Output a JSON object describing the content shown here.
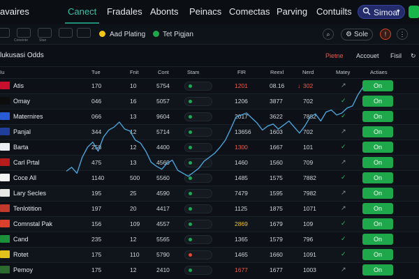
{
  "app": {
    "title": "avaires"
  },
  "nav": {
    "items": [
      "Canect",
      "Fradales",
      "Abonts",
      "Peinacs",
      "Comectas",
      "Parving",
      "Contuilts"
    ],
    "active_index": 0,
    "search_label": "Simoal"
  },
  "toolbar": {
    "icons": [
      "grid-icon",
      "contest-icon",
      "stats-icon"
    ],
    "icon_captions": [
      "",
      "Coneinte",
      "Stan"
    ],
    "add_label": "Aad Plating",
    "pigjan_label": "Tet Pigjan",
    "sole_label": "Sole"
  },
  "section": {
    "title": "lukusasi Odds",
    "tabs": [
      "Pietne",
      "Accouet",
      "Fisil"
    ]
  },
  "columns": [
    "Iu",
    "Tue",
    "Fnit",
    "Cont",
    "Stam",
    "FIR",
    "Reexl",
    "Nerd",
    "Matey",
    "Actiaes"
  ],
  "colors": {
    "accent": "#34c3a8",
    "on_button": "#1ea84b",
    "line": "#4aa3d9",
    "warn": "#f05a4a",
    "highlight": "#f2c419"
  },
  "rows": [
    {
      "name": "Atis",
      "tue": "170",
      "fnit": "10",
      "cont": "5754",
      "fir": "1201",
      "reexl": "08.16",
      "nerd": "302",
      "fir_color": "#f05a4a",
      "nerd_color": "#f05a4a",
      "nerd_prefix": "↓",
      "stam_warn": false,
      "mark": "↗",
      "mark_color": "#8a929b",
      "action": "On",
      "flag": "#c8102e"
    },
    {
      "name": "Omay",
      "tue": "046",
      "fnit": "16",
      "cont": "5057",
      "fir": "1206",
      "reexl": "3877",
      "nerd": "702",
      "fir_color": "#cfd4da",
      "nerd_color": "#cfd4da",
      "nerd_prefix": "",
      "stam_warn": false,
      "mark": "✓",
      "mark_color": "#28c15a",
      "action": "On",
      "flag": "#0d0d0d"
    },
    {
      "name": "Maternires",
      "tue": "066",
      "fnit": "13",
      "cont": "9604",
      "fir": "2017",
      "reexl": "3622",
      "nerd": "7882",
      "fir_color": "#cfd4da",
      "nerd_color": "#cfd4da",
      "nerd_prefix": "",
      "stam_warn": false,
      "mark": "✓",
      "mark_color": "#28c15a",
      "action": "On",
      "flag": "#2a5bd7"
    },
    {
      "name": "Panjal",
      "tue": "344",
      "fnit": "12",
      "cont": "5714",
      "fir": "13656",
      "reexl": "1603",
      "nerd": "702",
      "fir_color": "#cfd4da",
      "nerd_color": "#cfd4da",
      "nerd_prefix": "",
      "stam_warn": false,
      "mark": "↗",
      "mark_color": "#8a929b",
      "action": "On",
      "flag": "#1f3f9b"
    },
    {
      "name": "Barta",
      "tue": "258",
      "fnit": "12",
      "cont": "4400",
      "fir": "1300",
      "reexl": "1667",
      "nerd": "101",
      "fir_color": "#f05a4a",
      "nerd_color": "#cfd4da",
      "nerd_prefix": "",
      "stam_warn": false,
      "mark": "✓",
      "mark_color": "#28c15a",
      "action": "On",
      "flag": "#e9edf2"
    },
    {
      "name": "Carl Prtal",
      "tue": "475",
      "fnit": "13",
      "cont": "4560",
      "fir": "1460",
      "reexl": "1560",
      "nerd": "709",
      "fir_color": "#cfd4da",
      "nerd_color": "#cfd4da",
      "nerd_prefix": "",
      "stam_warn": false,
      "mark": "↗",
      "mark_color": "#8a929b",
      "action": "On",
      "flag": "#b71c1c"
    },
    {
      "name": "Coce All",
      "tue": "1140",
      "fnit": "500",
      "cont": "5560",
      "fir": "1485",
      "reexl": "1575",
      "nerd": "7882",
      "fir_color": "#cfd4da",
      "nerd_color": "#cfd4da",
      "nerd_prefix": "",
      "stam_warn": false,
      "mark": "✓",
      "mark_color": "#28c15a",
      "action": "On",
      "flag": "#f3f3f3"
    },
    {
      "name": "Lary Secles",
      "tue": "195",
      "fnit": "25",
      "cont": "4590",
      "fir": "7479",
      "reexl": "1595",
      "nerd": "7982",
      "fir_color": "#cfd4da",
      "nerd_color": "#cfd4da",
      "nerd_prefix": "",
      "stam_warn": false,
      "mark": "↗",
      "mark_color": "#8a929b",
      "action": "On",
      "flag": "#e6e6e6"
    },
    {
      "name": "Tenlotition",
      "tue": "197",
      "fnit": "20",
      "cont": "4417",
      "fir": "1125",
      "reexl": "1875",
      "nerd": "1071",
      "fir_color": "#cfd4da",
      "nerd_color": "#cfd4da",
      "nerd_prefix": "",
      "stam_warn": false,
      "mark": "↗",
      "mark_color": "#8a929b",
      "action": "On",
      "flag": "#c0392b"
    },
    {
      "name": "Comnstal Pak",
      "tue": "156",
      "fnit": "109",
      "cont": "4557",
      "fir": "2869",
      "reexl": "1679",
      "nerd": "109",
      "fir_color": "#f2c419",
      "nerd_color": "#cfd4da",
      "nerd_prefix": "",
      "stam_warn": false,
      "mark": "✓",
      "mark_color": "#28c15a",
      "action": "On",
      "flag": "#d9412e"
    },
    {
      "name": "Cand",
      "tue": "235",
      "fnit": "12",
      "cont": "5565",
      "fir": "1365",
      "reexl": "1579",
      "nerd": "796",
      "fir_color": "#cfd4da",
      "nerd_color": "#cfd4da",
      "nerd_prefix": "",
      "stam_warn": false,
      "mark": "✓",
      "mark_color": "#28c15a",
      "action": "On",
      "flag": "#1b8f3a"
    },
    {
      "name": "Rotet",
      "tue": "175",
      "fnit": "110",
      "cont": "5790",
      "fir": "1465",
      "reexl": "1660",
      "nerd": "1091",
      "fir_color": "#cfd4da",
      "nerd_color": "#cfd4da",
      "nerd_prefix": "",
      "stam_warn": true,
      "mark": "✓",
      "mark_color": "#28c15a",
      "action": "On",
      "flag": "#e0c21a"
    },
    {
      "name": "Pemoy",
      "tue": "175",
      "fnit": "12",
      "cont": "2410",
      "fir": "1677",
      "reexl": "1677",
      "nerd": "1003",
      "fir_color": "#f05a4a",
      "nerd_color": "#cfd4da",
      "nerd_prefix": "",
      "stam_warn": false,
      "mark": "↗",
      "mark_color": "#8a929b",
      "action": "On",
      "flag": "#2d6a2f"
    }
  ],
  "chart_data": {
    "type": "line",
    "title": "",
    "xlabel": "",
    "ylabel": "",
    "series": [
      {
        "values": [
          0.42,
          0.46,
          0.4,
          0.56,
          0.66,
          0.71,
          0.62,
          0.76,
          0.83,
          0.86,
          0.91,
          0.84,
          0.82,
          0.73,
          0.7,
          0.62,
          0.51,
          0.47,
          0.44,
          0.5,
          0.53,
          0.43,
          0.4,
          0.37,
          0.41,
          0.45,
          0.52,
          0.56,
          0.6,
          0.66,
          0.73,
          0.84,
          0.96,
          0.98,
          1.0,
          0.95,
          0.9,
          0.83,
          0.87,
          0.89,
          0.84,
          0.88,
          0.92,
          0.86,
          0.8,
          0.87,
          0.96,
          0.99,
          0.92,
          1.01,
          1.03,
          0.98,
          1.0,
          1.05,
          1.07,
          1.18,
          1.26
        ]
      }
    ],
    "ylim": [
      0,
      1.5
    ],
    "grid": false
  }
}
